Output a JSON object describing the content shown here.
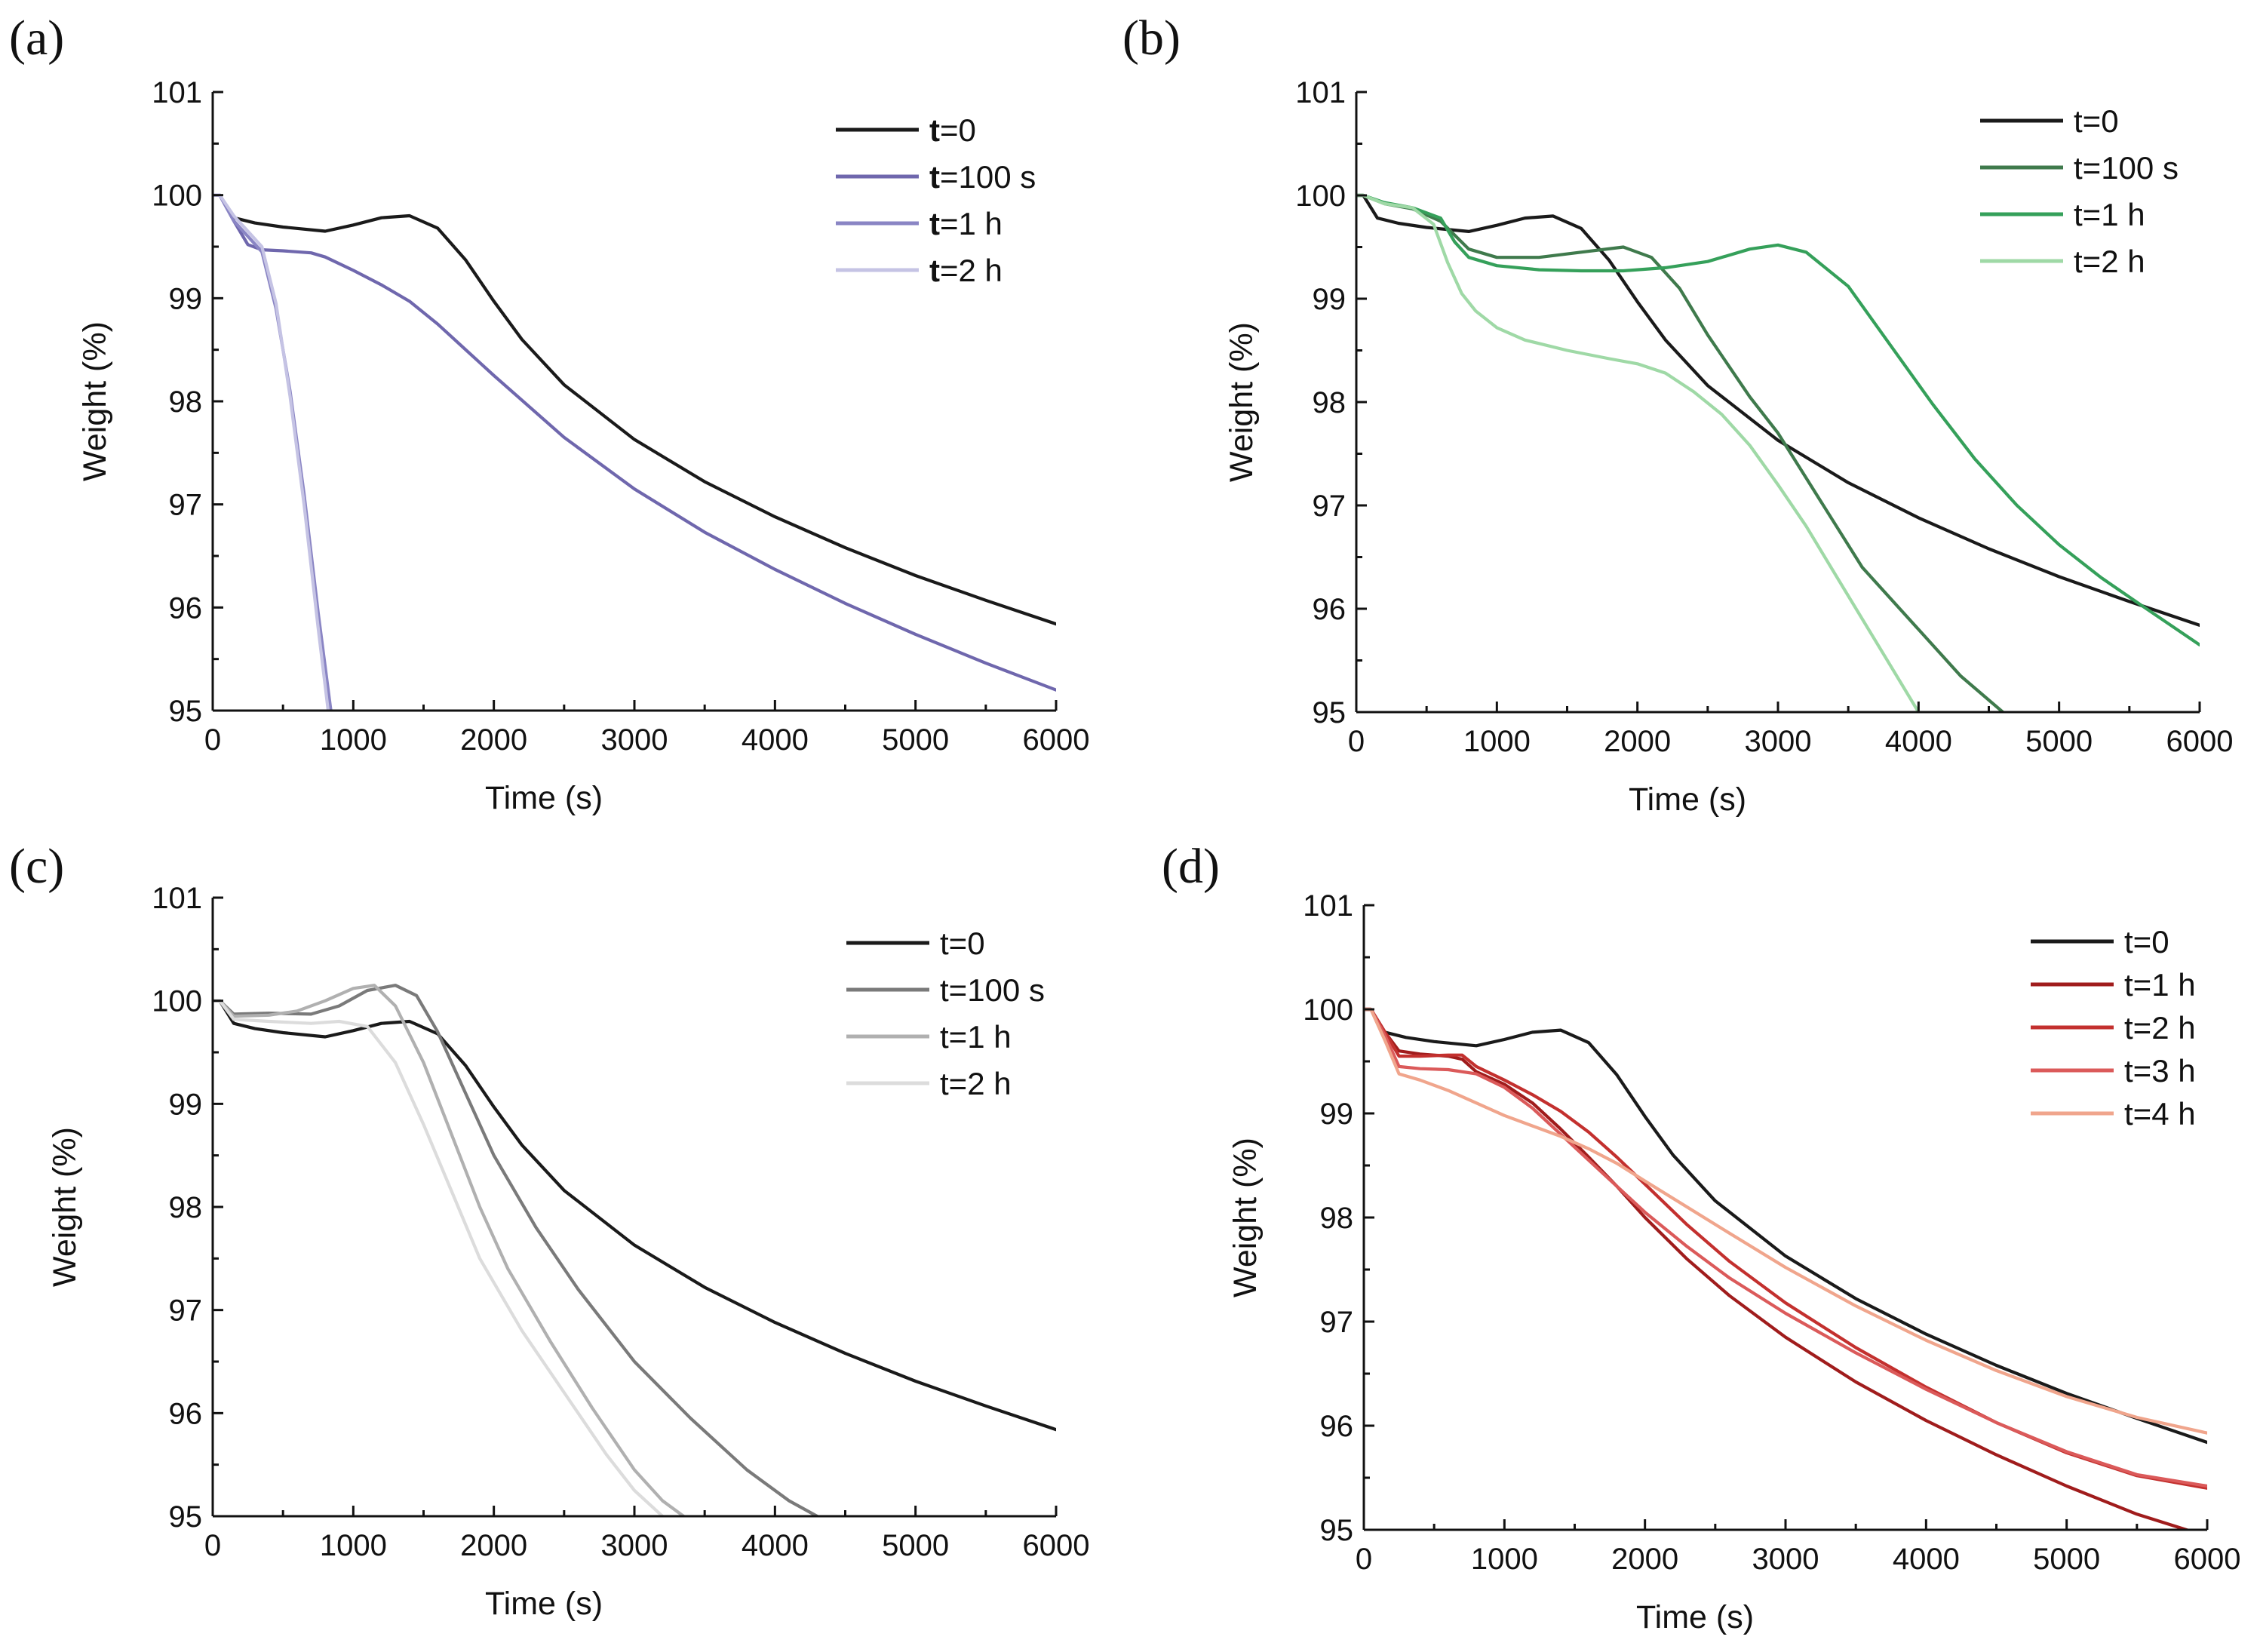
{
  "chart_data": [
    {
      "type": "line",
      "panel_label": "(a)",
      "xlabel": "Time (s)",
      "ylabel": "Weight (%)",
      "xlim": [
        0,
        6000
      ],
      "ylim": [
        95,
        101
      ],
      "xticks": [
        0,
        1000,
        2000,
        3000,
        4000,
        5000,
        6000
      ],
      "yticks": [
        95,
        96,
        97,
        98,
        99,
        100,
        101
      ],
      "legend_position": "top-right",
      "series": [
        {
          "name": "t=0",
          "label_prefix": "t",
          "label_suffix": "=0",
          "color": "#1a1a1a",
          "x": [
            0,
            50,
            150,
            300,
            500,
            800,
            1000,
            1200,
            1400,
            1600,
            1800,
            2000,
            2200,
            2500,
            3000,
            3500,
            4000,
            4500,
            5000,
            5500,
            6000
          ],
          "y": [
            100.0,
            100.0,
            99.78,
            99.73,
            99.69,
            99.65,
            99.71,
            99.78,
            99.8,
            99.68,
            99.37,
            98.97,
            98.6,
            98.16,
            97.63,
            97.22,
            96.88,
            96.58,
            96.31,
            96.07,
            95.84
          ]
        },
        {
          "name": "t=100 s",
          "label_prefix": "t",
          "label_suffix": "=100 s",
          "color": "#6f67ad",
          "x": [
            0,
            50,
            150,
            250,
            350,
            500,
            700,
            800,
            1000,
            1200,
            1400,
            1600,
            1800,
            2000,
            2500,
            3000,
            3500,
            4000,
            4500,
            5000,
            5500,
            6000
          ],
          "y": [
            100.0,
            100.0,
            99.75,
            99.52,
            99.47,
            99.46,
            99.44,
            99.4,
            99.27,
            99.13,
            98.97,
            98.75,
            98.5,
            98.25,
            97.65,
            97.15,
            96.73,
            96.37,
            96.04,
            95.74,
            95.46,
            95.2
          ]
        },
        {
          "name": "t=1 h",
          "label_prefix": "t",
          "label_suffix": "=1 h",
          "color": "#8a85c4",
          "x": [
            0,
            50,
            150,
            250,
            350,
            450,
            550,
            650,
            750,
            850
          ],
          "y": [
            100.0,
            100.0,
            99.75,
            99.6,
            99.45,
            98.9,
            98.1,
            97.1,
            95.95,
            94.9
          ]
        },
        {
          "name": "t=2 h",
          "label_prefix": "t",
          "label_suffix": "=2 h",
          "color": "#c5c3e4",
          "x": [
            0,
            50,
            150,
            250,
            350,
            450,
            550,
            650,
            750,
            830
          ],
          "y": [
            100.0,
            100.0,
            99.8,
            99.65,
            99.5,
            98.95,
            98.05,
            97.0,
            95.8,
            94.9
          ]
        }
      ]
    },
    {
      "type": "line",
      "panel_label": "(b)",
      "xlabel": "Time (s)",
      "ylabel": "Weight (%)",
      "xlim": [
        0,
        6000
      ],
      "ylim": [
        95,
        101
      ],
      "xticks": [
        0,
        1000,
        2000,
        3000,
        4000,
        5000,
        6000
      ],
      "yticks": [
        95,
        96,
        97,
        98,
        99,
        100,
        101
      ],
      "legend_position": "top-right",
      "series": [
        {
          "name": "t=0",
          "color": "#1a1a1a",
          "x": [
            0,
            50,
            150,
            300,
            500,
            800,
            1000,
            1200,
            1400,
            1600,
            1800,
            2000,
            2200,
            2500,
            3000,
            3500,
            4000,
            4500,
            5000,
            5500,
            6000
          ],
          "y": [
            100.0,
            100.0,
            99.78,
            99.73,
            99.69,
            99.65,
            99.71,
            99.78,
            99.8,
            99.68,
            99.37,
            98.97,
            98.6,
            98.16,
            97.63,
            97.22,
            96.88,
            96.58,
            96.31,
            96.07,
            95.84
          ]
        },
        {
          "name": "t=100 s",
          "color": "#3f7a4c",
          "x": [
            0,
            50,
            200,
            400,
            600,
            800,
            1000,
            1300,
            1600,
            1900,
            2100,
            2300,
            2500,
            2800,
            3000,
            3300,
            3600,
            4000,
            4300,
            4600
          ],
          "y": [
            100.0,
            100.0,
            99.92,
            99.87,
            99.75,
            99.48,
            99.4,
            99.4,
            99.45,
            99.5,
            99.4,
            99.1,
            98.65,
            98.05,
            97.7,
            97.05,
            96.4,
            95.8,
            95.35,
            95.0
          ]
        },
        {
          "name": "t=1 h",
          "color": "#35a05a",
          "x": [
            0,
            50,
            200,
            400,
            600,
            700,
            800,
            1000,
            1300,
            1600,
            1900,
            2200,
            2500,
            2800,
            3000,
            3200,
            3500,
            3800,
            4100,
            4400,
            4700,
            5000,
            5300,
            5600,
            6000
          ],
          "y": [
            100.0,
            100.0,
            99.93,
            99.88,
            99.78,
            99.55,
            99.4,
            99.32,
            99.28,
            99.27,
            99.27,
            99.3,
            99.36,
            99.48,
            99.52,
            99.45,
            99.12,
            98.55,
            97.98,
            97.45,
            97.0,
            96.62,
            96.3,
            96.02,
            95.65
          ]
        },
        {
          "name": "t=2 h",
          "color": "#9fd9a6",
          "x": [
            0,
            50,
            200,
            400,
            550,
            650,
            750,
            850,
            1000,
            1200,
            1500,
            1800,
            2000,
            2200,
            2400,
            2600,
            2800,
            3000,
            3200,
            3400,
            3600,
            3800,
            4000
          ],
          "y": [
            100.0,
            100.0,
            99.92,
            99.88,
            99.72,
            99.35,
            99.05,
            98.88,
            98.72,
            98.6,
            98.5,
            98.42,
            98.37,
            98.28,
            98.1,
            97.88,
            97.58,
            97.2,
            96.8,
            96.35,
            95.9,
            95.45,
            95.0
          ]
        }
      ]
    },
    {
      "type": "line",
      "panel_label": "(c)",
      "xlabel": "Time (s)",
      "ylabel": "Weight (%)",
      "xlim": [
        0,
        6000
      ],
      "ylim": [
        95,
        101
      ],
      "xticks": [
        0,
        1000,
        2000,
        3000,
        4000,
        5000,
        6000
      ],
      "yticks": [
        95,
        96,
        97,
        98,
        99,
        100,
        101
      ],
      "legend_position": "top-right",
      "series": [
        {
          "name": "t=0",
          "color": "#1a1a1a",
          "x": [
            0,
            50,
            150,
            300,
            500,
            800,
            1000,
            1200,
            1400,
            1600,
            1800,
            2000,
            2200,
            2500,
            3000,
            3500,
            4000,
            4500,
            5000,
            5500,
            6000
          ],
          "y": [
            100.0,
            100.0,
            99.78,
            99.73,
            99.69,
            99.65,
            99.71,
            99.78,
            99.8,
            99.68,
            99.37,
            98.97,
            98.6,
            98.16,
            97.63,
            97.22,
            96.88,
            96.58,
            96.31,
            96.07,
            95.84
          ]
        },
        {
          "name": "t=100 s",
          "color": "#7a7a7a",
          "x": [
            0,
            50,
            150,
            400,
            700,
            900,
            1100,
            1300,
            1450,
            1600,
            1800,
            2000,
            2300,
            2600,
            3000,
            3400,
            3800,
            4100,
            4300
          ],
          "y": [
            100.0,
            100.0,
            99.87,
            99.88,
            99.87,
            99.95,
            100.1,
            100.15,
            100.05,
            99.7,
            99.1,
            98.5,
            97.8,
            97.2,
            96.5,
            95.95,
            95.45,
            95.15,
            95.0
          ]
        },
        {
          "name": "t=1 h",
          "color": "#b0b0b0",
          "x": [
            0,
            50,
            150,
            400,
            600,
            800,
            1000,
            1150,
            1300,
            1500,
            1700,
            1900,
            2100,
            2400,
            2700,
            3000,
            3200,
            3350
          ],
          "y": [
            100.0,
            100.0,
            99.85,
            99.86,
            99.9,
            100.0,
            100.12,
            100.15,
            99.95,
            99.4,
            98.7,
            98.0,
            97.4,
            96.7,
            96.05,
            95.45,
            95.15,
            95.0
          ]
        },
        {
          "name": "t=2 h",
          "color": "#dcdcdc",
          "x": [
            0,
            50,
            150,
            400,
            700,
            900,
            1100,
            1300,
            1500,
            1700,
            1900,
            2200,
            2500,
            2800,
            3000,
            3200
          ],
          "y": [
            100.0,
            100.0,
            99.82,
            99.8,
            99.78,
            99.8,
            99.75,
            99.4,
            98.8,
            98.15,
            97.5,
            96.8,
            96.2,
            95.6,
            95.25,
            95.0
          ]
        }
      ]
    },
    {
      "type": "line",
      "panel_label": "(d)",
      "xlabel": "Time (s)",
      "ylabel": "Weight (%)",
      "xlim": [
        0,
        6000
      ],
      "ylim": [
        95,
        101
      ],
      "xticks": [
        0,
        1000,
        2000,
        3000,
        4000,
        5000,
        6000
      ],
      "yticks": [
        95,
        96,
        97,
        98,
        99,
        100,
        101
      ],
      "legend_position": "top-right",
      "series": [
        {
          "name": "t=0",
          "color": "#1a1a1a",
          "x": [
            0,
            50,
            150,
            300,
            500,
            800,
            1000,
            1200,
            1400,
            1600,
            1800,
            2000,
            2200,
            2500,
            3000,
            3500,
            4000,
            4500,
            5000,
            5500,
            6000
          ],
          "y": [
            100.0,
            100.0,
            99.78,
            99.73,
            99.69,
            99.65,
            99.71,
            99.78,
            99.8,
            99.68,
            99.37,
            98.97,
            98.6,
            98.16,
            97.63,
            97.22,
            96.88,
            96.58,
            96.31,
            96.07,
            95.84
          ]
        },
        {
          "name": "t=1 h",
          "color": "#a01c1c",
          "x": [
            0,
            50,
            150,
            250,
            400,
            600,
            700,
            800,
            1000,
            1200,
            1400,
            1600,
            1800,
            2000,
            2300,
            2600,
            3000,
            3500,
            4000,
            4500,
            5000,
            5500,
            5900
          ],
          "y": [
            100.0,
            100.0,
            99.78,
            99.6,
            99.57,
            99.55,
            99.52,
            99.4,
            99.28,
            99.1,
            98.85,
            98.58,
            98.3,
            98.0,
            97.6,
            97.25,
            96.85,
            96.42,
            96.05,
            95.72,
            95.42,
            95.15,
            94.98
          ]
        },
        {
          "name": "t=2 h",
          "color": "#c3302e",
          "x": [
            0,
            50,
            150,
            250,
            400,
            600,
            700,
            800,
            1000,
            1200,
            1400,
            1600,
            1800,
            2000,
            2300,
            2600,
            3000,
            3500,
            4000,
            4500,
            5000,
            5500,
            6000
          ],
          "y": [
            100.0,
            100.0,
            99.78,
            99.55,
            99.55,
            99.56,
            99.56,
            99.45,
            99.32,
            99.18,
            99.02,
            98.82,
            98.58,
            98.32,
            97.93,
            97.58,
            97.18,
            96.75,
            96.37,
            96.03,
            95.74,
            95.52,
            95.4
          ]
        },
        {
          "name": "t=3 h",
          "color": "#db5a5a",
          "x": [
            0,
            50,
            150,
            250,
            400,
            600,
            800,
            1000,
            1200,
            1400,
            1600,
            1800,
            2000,
            2300,
            2600,
            3000,
            3500,
            4000,
            4500,
            5000,
            5500,
            6000
          ],
          "y": [
            100.0,
            100.0,
            99.75,
            99.45,
            99.43,
            99.42,
            99.38,
            99.25,
            99.05,
            98.8,
            98.55,
            98.3,
            98.05,
            97.72,
            97.42,
            97.08,
            96.7,
            96.35,
            96.03,
            95.75,
            95.53,
            95.42
          ]
        },
        {
          "name": "t=4 h",
          "color": "#f0a58c",
          "x": [
            0,
            50,
            150,
            250,
            400,
            600,
            800,
            1000,
            1200,
            1400,
            1600,
            1800,
            2000,
            2300,
            2600,
            3000,
            3500,
            4000,
            4500,
            5000,
            5500,
            6000
          ],
          "y": [
            100.0,
            100.0,
            99.7,
            99.38,
            99.32,
            99.22,
            99.1,
            98.98,
            98.88,
            98.78,
            98.66,
            98.52,
            98.35,
            98.1,
            97.85,
            97.52,
            97.15,
            96.82,
            96.53,
            96.28,
            96.08,
            95.93
          ]
        }
      ]
    }
  ]
}
